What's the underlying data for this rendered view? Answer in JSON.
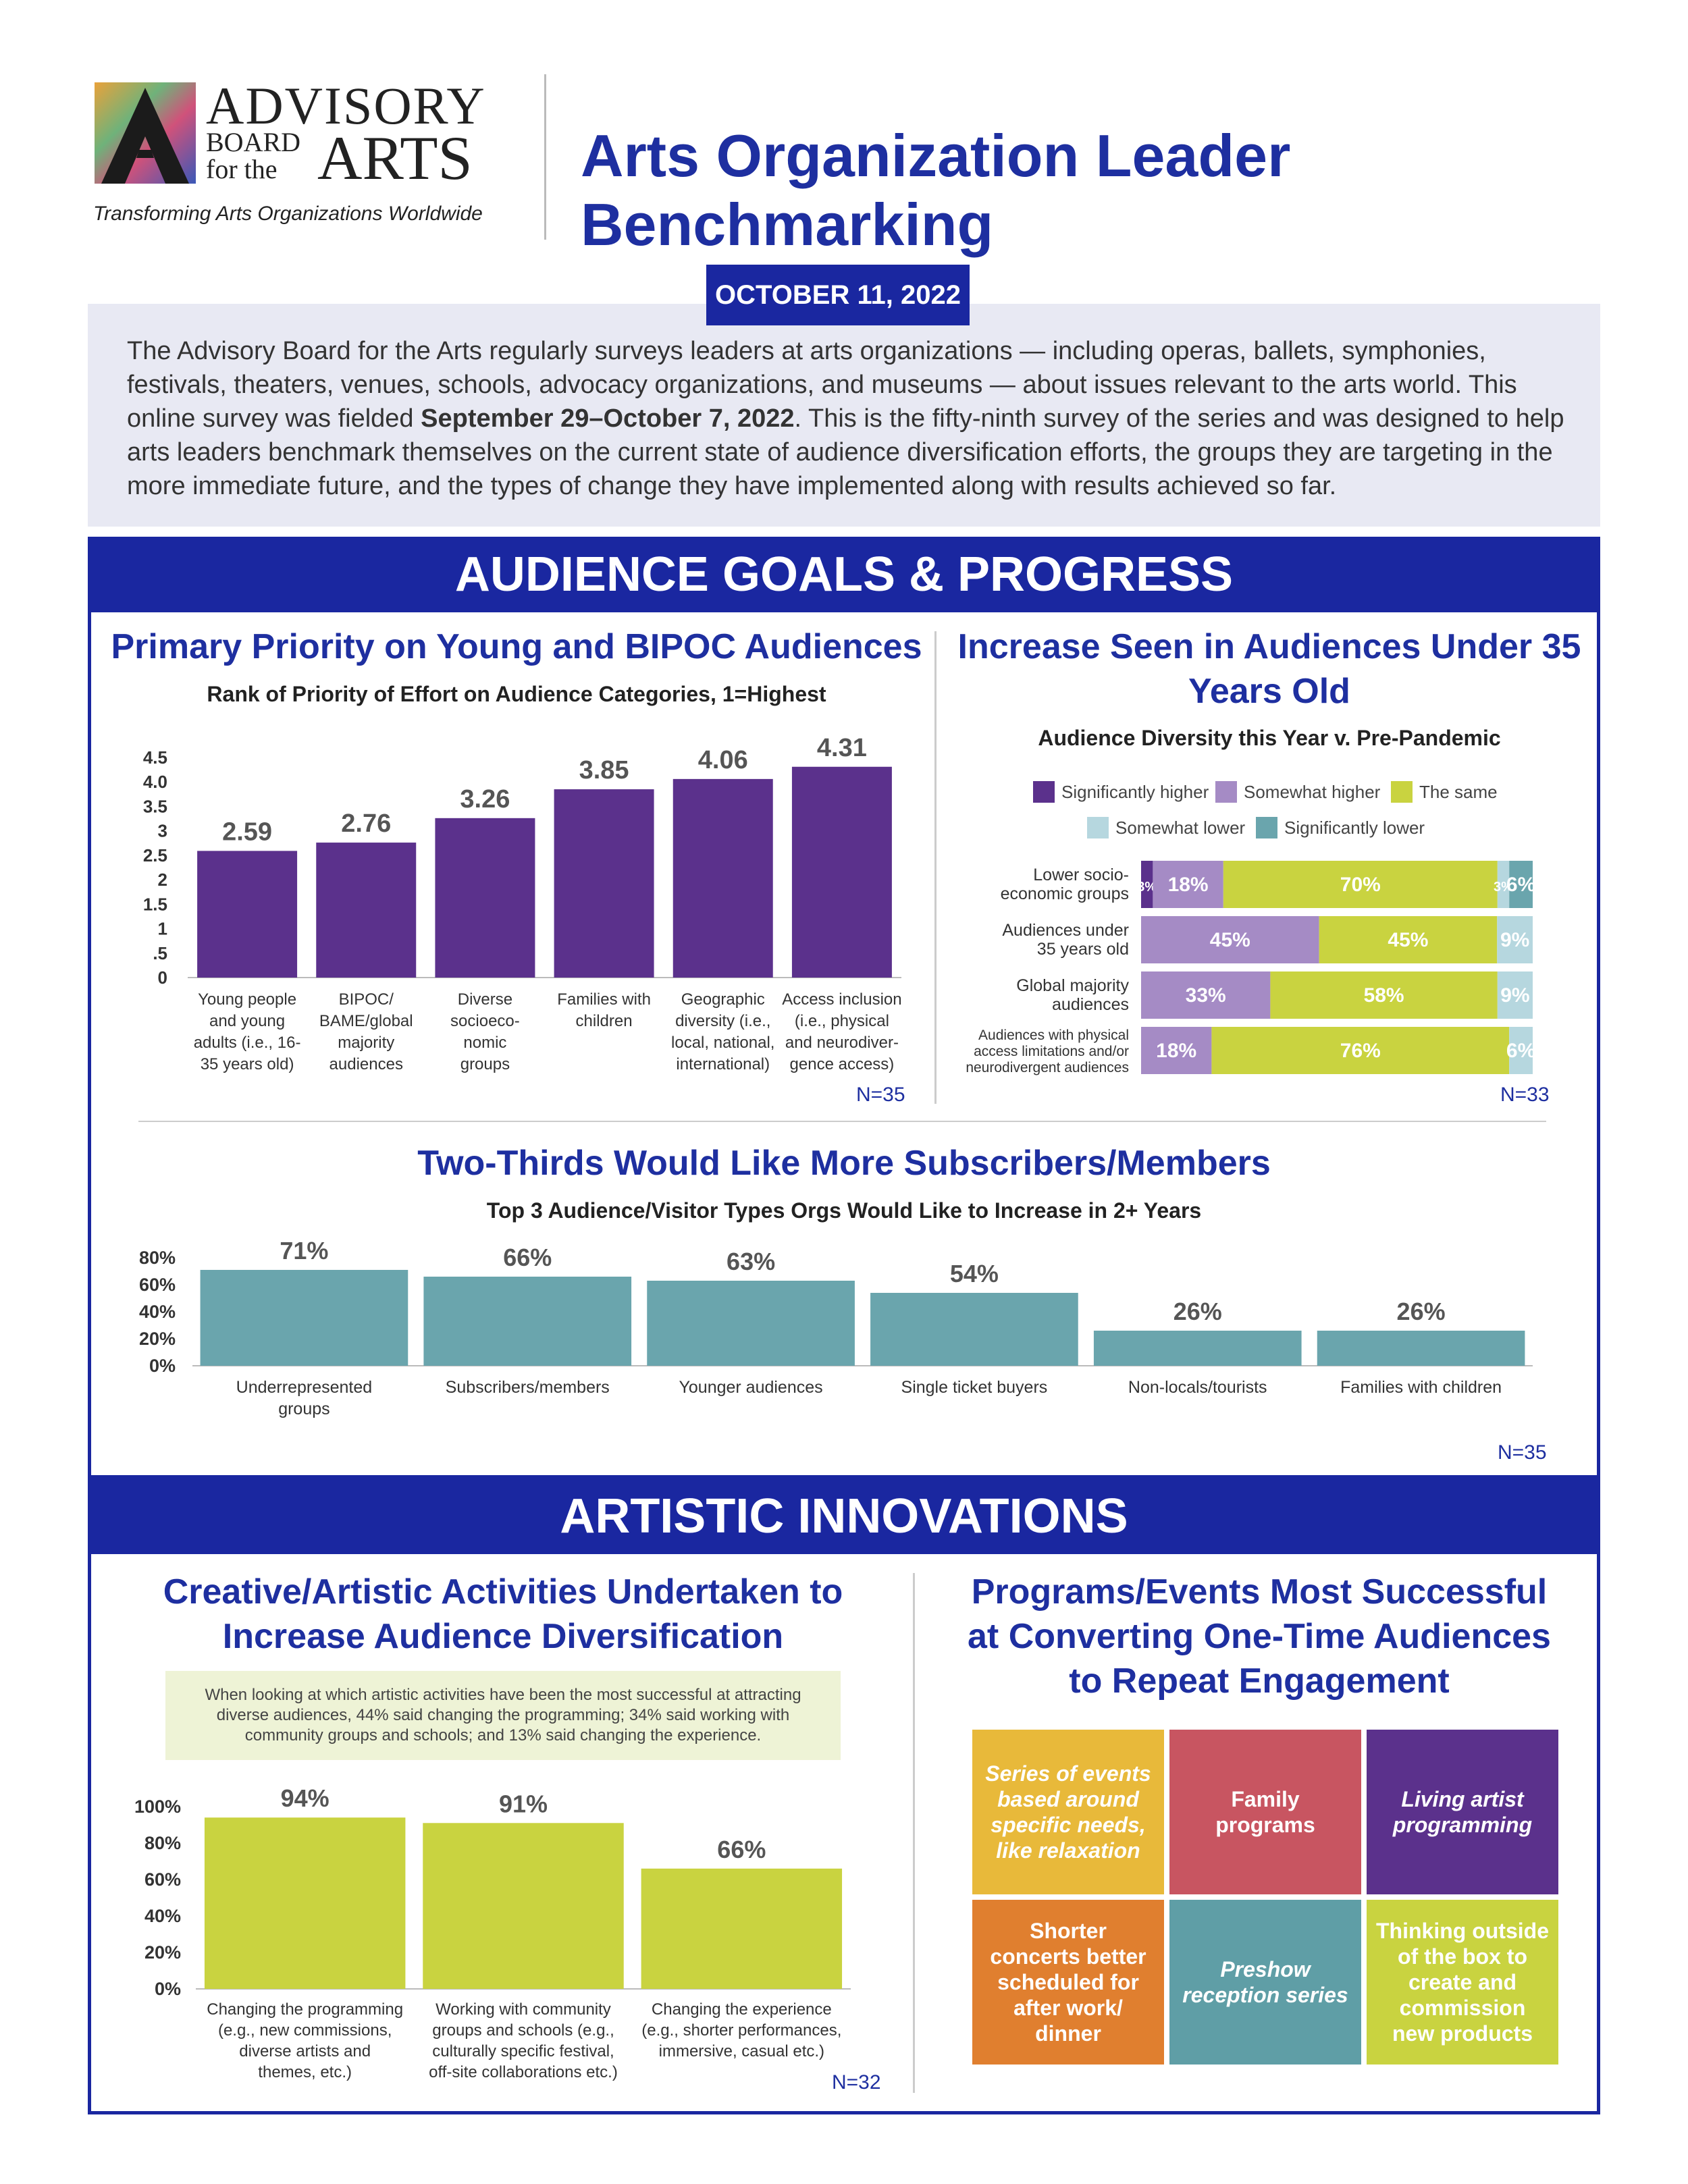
{
  "header": {
    "logo_line1": "ADVISORY",
    "logo_line2a": "BOARD",
    "logo_line2b": "for the",
    "logo_line3": "ARTS",
    "tagline": "Transforming Arts Organizations Worldwide",
    "title": "Arts Organization Leader Benchmarking",
    "date": "OCTOBER 11, 2022"
  },
  "intro": {
    "part1": "The Advisory Board for the Arts regularly surveys leaders at arts organizations — including  operas, ballets, symphonies, festivals, theaters, venues, schools, advocacy organizations, and museums — about issues relevant to the arts world. This online survey was fielded ",
    "bold": "September 29–October 7, 2022",
    "part2": ". This is the fifty-ninth survey of the series and was designed to help arts leaders benchmark themselves on  the current state of audience diversification efforts, the groups they are targeting in the more immediate future, and the types of change they have implemented along with results achieved so far."
  },
  "sections": {
    "audience": "AUDIENCE GOALS & PROGRESS",
    "artistic": "ARTISTIC INNOVATIONS"
  },
  "colors": {
    "navy": "#1a27a0",
    "purple": "#5b318c",
    "lavender": "#a58bc5",
    "lime": "#c9d340",
    "pale_blue": "#b6d7df",
    "teal": "#6aa5ad",
    "red": "#c85561"
  },
  "chart_data": [
    {
      "type": "bar",
      "title": "Primary Priority on Young and BIPOC Audiences",
      "subtitle": "Rank of Priority of Effort on Audience Categories, 1=Highest",
      "categories": [
        [
          "Young people",
          "and young",
          "adults (i.e., 16-",
          "35 years old)"
        ],
        [
          "BIPOC/",
          "BAME/global",
          "majority",
          "audiences"
        ],
        [
          "Diverse",
          "socioeco-",
          "nomic",
          "groups"
        ],
        [
          "Families with",
          "children"
        ],
        [
          "Geographic",
          "diversity (i.e.,",
          "local, national,",
          "international)"
        ],
        [
          "Access inclusion",
          "(i.e., physical",
          "and neurodiver-",
          "gence access)"
        ]
      ],
      "values": [
        2.59,
        2.76,
        3.26,
        3.85,
        4.06,
        4.31
      ],
      "labels": [
        "2.59",
        "2.76",
        "3.26",
        "3.85",
        "4.06",
        "4.31"
      ],
      "yticks": [
        "4.5",
        "4.0",
        "3.5",
        "3",
        "2.5",
        "2",
        "1.5",
        "1",
        ".5",
        "0"
      ],
      "ylim": [
        0,
        4.5
      ],
      "note": "N=35"
    },
    {
      "type": "bar",
      "orientation": "horizontal-stacked",
      "title": "Increase Seen in Audiences Under 35 Years Old",
      "subtitle": "Audience Diversity this Year v. Pre-Pandemic",
      "legend": [
        "Significantly higher",
        "Somewhat higher",
        "The same",
        "Somewhat lower",
        "Significantly lower"
      ],
      "categories": [
        [
          "Lower socio-",
          "economic  groups"
        ],
        [
          "Audiences under",
          "35 years old"
        ],
        [
          "Global majority",
          "audiences"
        ],
        [
          "Audiences with physical",
          "access limitations and/or",
          "neurodivergent audiences"
        ]
      ],
      "series": [
        {
          "name": "Significantly higher",
          "values": [
            3,
            0,
            0,
            0
          ],
          "labels": [
            "3%",
            "",
            "",
            ""
          ]
        },
        {
          "name": "Somewhat higher",
          "values": [
            18,
            45,
            33,
            18
          ],
          "labels": [
            "18%",
            "45%",
            "33%",
            "18%"
          ]
        },
        {
          "name": "The same",
          "values": [
            70,
            45,
            58,
            76
          ],
          "labels": [
            "70%",
            "45%",
            "58%",
            "76%"
          ]
        },
        {
          "name": "Somewhat lower",
          "values": [
            3,
            9,
            9,
            6
          ],
          "labels": [
            "3%",
            "9%",
            "9%",
            "6%"
          ]
        },
        {
          "name": "Significantly lower",
          "values": [
            6,
            0,
            0,
            0
          ],
          "labels": [
            "6%",
            "",
            "",
            ""
          ]
        }
      ],
      "note": "N=33"
    },
    {
      "type": "bar",
      "title": "Two-Thirds Would Like More Subscribers/Members",
      "subtitle": "Top 3 Audience/Visitor Types Orgs Would Like to Increase in 2+ Years",
      "categories": [
        [
          "Underrepresented",
          "groups"
        ],
        [
          "Subscribers/members"
        ],
        [
          "Younger audiences"
        ],
        [
          "Single ticket buyers"
        ],
        [
          "Non-locals/tourists"
        ],
        [
          "Families with children"
        ]
      ],
      "values": [
        71,
        66,
        63,
        54,
        26,
        26
      ],
      "labels": [
        "71%",
        "66%",
        "63%",
        "54%",
        "26%",
        "26%"
      ],
      "yticks": [
        "80%",
        "60%",
        "40%",
        "20%",
        "0%"
      ],
      "ylim": [
        0,
        80
      ],
      "note": "N=35"
    },
    {
      "type": "bar",
      "title": "Creative/Artistic Activities Undertaken to Increase Audience Diversification",
      "callout": "When looking at which artistic activities have been the most successful at attracting diverse audiences, 44% said changing the programming; 34% said working with community groups and schools; and 13% said changing the experience.",
      "categories": [
        [
          "Changing the programming",
          "(e.g., new commissions,",
          "diverse artists and",
          "themes, etc.)"
        ],
        [
          "Working with community",
          "groups and schools (e.g.,",
          "culturally specific festival,",
          "off-site collaborations etc.)"
        ],
        [
          "Changing the experience",
          "(e.g., shorter performances,",
          "immersive, casual etc.)"
        ]
      ],
      "values": [
        94,
        91,
        66
      ],
      "labels": [
        "94%",
        "91%",
        "66%"
      ],
      "yticks": [
        "100%",
        "80%",
        "60%",
        "40%",
        "20%",
        "0%"
      ],
      "ylim": [
        0,
        100
      ],
      "note": "N=32"
    }
  ],
  "programs": {
    "title_line1": "Programs/Events Most Successful",
    "title_line2": "at Converting One-Time Audiences",
    "title_line3": "to Repeat Engagement",
    "tiles": [
      {
        "text": "Series of events based around specific needs, like relaxation",
        "color": "#e8b93a",
        "italic": true
      },
      {
        "text": "Family programs",
        "color": "#c85561",
        "italic": false
      },
      {
        "text": "Living artist programming",
        "color": "#5b318c",
        "italic": true
      },
      {
        "text": "Shorter concerts better scheduled for after work/ dinner",
        "color": "#e07f2f",
        "italic": false
      },
      {
        "text": "Preshow reception series",
        "color": "#5f9ea6",
        "italic": true
      },
      {
        "text": "Thinking outside of the box to create and commission new products",
        "color": "#c9d340",
        "italic": false
      }
    ]
  }
}
